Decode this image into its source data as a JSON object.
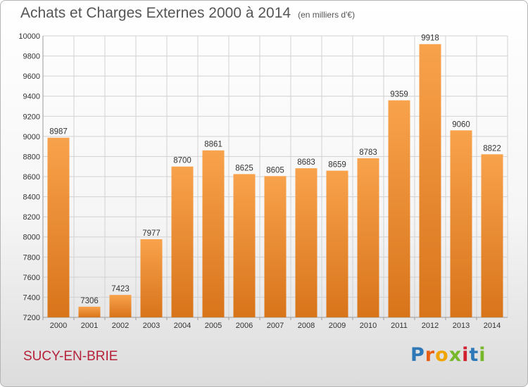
{
  "header": {
    "title": "Achats et Charges Externes 2000 à 2014",
    "unit": "(en milliers d'€)"
  },
  "footer": {
    "city": "SUCY-EN-BRIE",
    "logo_letters": [
      "P",
      "r",
      "o",
      "x",
      "i",
      "t",
      "i"
    ]
  },
  "colors": {
    "bar_light": "#f8a24c",
    "bar_dark": "#d8741a",
    "title": "#555555",
    "city": "#b5223a",
    "grid": "#d2d2d2"
  },
  "chart_data": {
    "type": "bar",
    "categories": [
      "2000",
      "2001",
      "2002",
      "2003",
      "2004",
      "2005",
      "2006",
      "2007",
      "2008",
      "2009",
      "2010",
      "2011",
      "2012",
      "2013",
      "2014"
    ],
    "values": [
      8987,
      7306,
      7423,
      7977,
      8700,
      8861,
      8625,
      8605,
      8683,
      8659,
      8783,
      9359,
      9918,
      9060,
      8822
    ],
    "data_labels": [
      "8987",
      "7306",
      "7423",
      "7977",
      "8700",
      "8861",
      "8625",
      "8605",
      "8683",
      "8659",
      "8783",
      "9359",
      "9918",
      "9060",
      "8822"
    ],
    "y_ticks": [
      "7200",
      "7400",
      "7600",
      "7800",
      "8000",
      "8200",
      "8400",
      "8600",
      "8800",
      "9000",
      "9200",
      "9400",
      "9600",
      "9800",
      "10000"
    ],
    "ylim": [
      7200,
      10000
    ],
    "grid": true,
    "legend": "none"
  }
}
